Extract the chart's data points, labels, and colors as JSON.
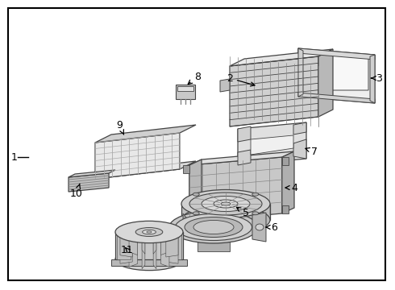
{
  "bg_color": "#ffffff",
  "border_color": "#000000",
  "line_color": "#444444",
  "label_color": "#000000",
  "figsize": [
    4.9,
    3.6
  ],
  "dpi": 100,
  "parts": {
    "3_frame": {
      "color_face": "#f0f0f0",
      "color_edge": "#444444"
    },
    "2_heater": {
      "color_face": "#c8c8c8",
      "color_edge": "#444444"
    },
    "7_bracket": {
      "color_face": "#d8d8d8",
      "color_edge": "#444444"
    },
    "4_case": {
      "color_face": "#c0c0c0",
      "color_edge": "#444444"
    },
    "8_clip": {
      "color_face": "#b8b8b8",
      "color_edge": "#444444"
    },
    "5_motor": {
      "color_face": "#c0c0c0",
      "color_edge": "#444444"
    },
    "6_scroll": {
      "color_face": "#c0c0c0",
      "color_edge": "#444444"
    },
    "11_wheel": {
      "color_face": "#d0d0d0",
      "color_edge": "#444444"
    },
    "9_filter": {
      "color_face": "#e0e0e0",
      "color_edge": "#444444"
    },
    "10_cover": {
      "color_face": "#b0b0b0",
      "color_edge": "#444444"
    }
  }
}
